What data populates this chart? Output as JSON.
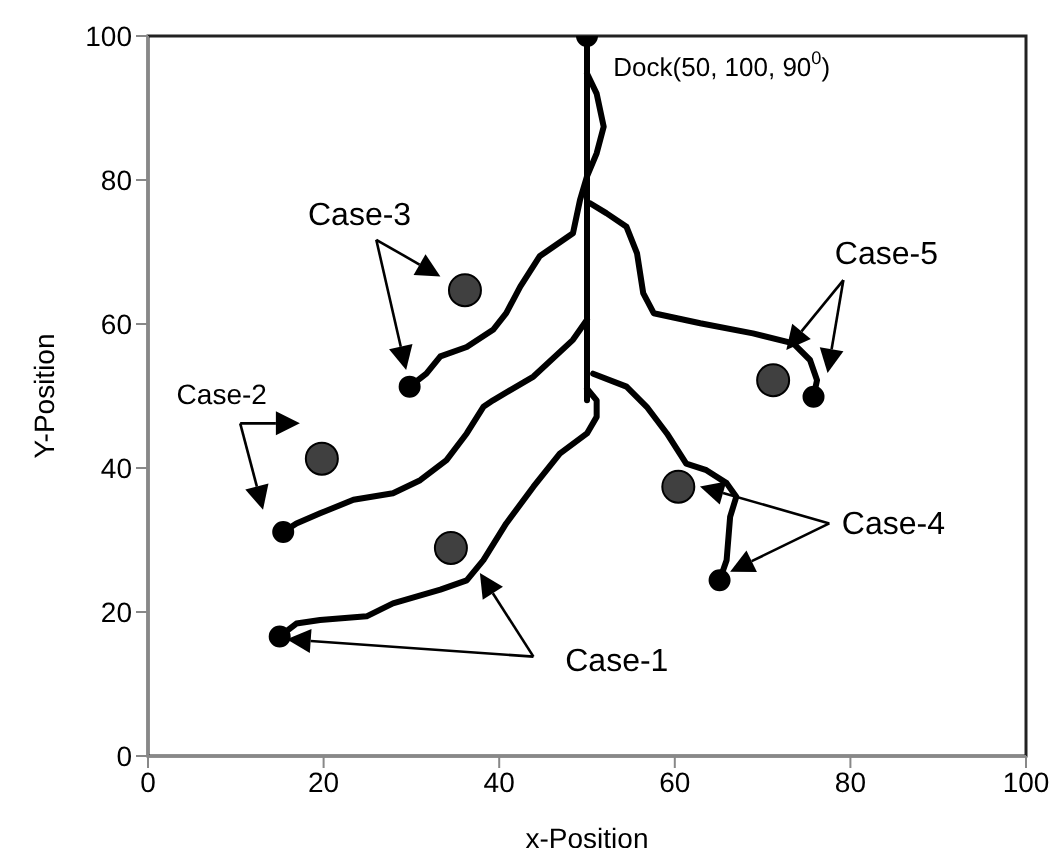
{
  "chart_data": {
    "type": "line",
    "xlabel": "x-Position",
    "ylabel": "Y-Position",
    "xlim": [
      0,
      100
    ],
    "ylim": [
      0,
      100
    ],
    "xticks": [
      0,
      20,
      40,
      60,
      80,
      100
    ],
    "yticks": [
      0,
      20,
      40,
      60,
      80,
      100
    ],
    "annotations": [
      "Dock(50, 100, 90$^{0}$)",
      "Case-1",
      "Case-2",
      "Case-3",
      {
        "text": "Case-4",
        "x": 67.0,
        "y": 36.0
      },
      "Case-5"
    ],
    "series": [
      {
        "color": "#000000",
        "x": [
          50,
          50
        ],
        "values": [
          100,
          49.4
        ]
      },
      {
        "color": "#000000",
        "x": [
          15.0,
          16.9,
          19.6,
          24.9,
          27.9,
          33.3,
          36.3,
          38.2,
          40.8,
          43.9,
          46.9,
          50.0,
          51.1,
          51.1,
          50
        ],
        "values": [
          16.6,
          18.4,
          18.9,
          19.4,
          21.2,
          23.1,
          24.4,
          27.2,
          32.3,
          37.4,
          42.0,
          44.8,
          47.1,
          49.4,
          51
        ]
      },
      {
        "color": "#000000",
        "x": [
          15.4,
          16.9,
          19.6,
          23.4,
          27.9,
          31.0,
          34.0,
          36.3,
          38.2,
          39.3,
          43.9,
          48.4,
          50
        ],
        "values": [
          31.1,
          32.3,
          33.7,
          35.6,
          36.5,
          38.3,
          41.1,
          44.8,
          48.5,
          49.4,
          52.7,
          57.8,
          60.6
        ]
      },
      {
        "color": "#000000",
        "x": [
          29.8,
          31.7,
          33.3,
          36.3,
          39.3,
          40.8,
          42.4,
          44.6,
          48.4,
          49.2,
          50,
          51.1,
          51.9,
          51.1,
          50
        ],
        "values": [
          51.3,
          53.1,
          55.5,
          56.8,
          59.2,
          61.5,
          65.2,
          69.4,
          72.6,
          77.2,
          80.5,
          83.7,
          87.4,
          92,
          94.8
        ]
      },
      {
        "color": "#000000",
        "x": [
          65.1,
          65.9,
          66.3,
          67.0,
          65.9,
          63.6,
          61.3,
          59.1,
          56.8,
          54.5,
          50.7
        ],
        "values": [
          24.4,
          27.2,
          33.2,
          36.0,
          37.9,
          39.7,
          40.6,
          44.8,
          48.5,
          51.3,
          53.1
        ]
      },
      {
        "color": "#000000",
        "x": [
          75.8,
          76.2,
          75.4,
          73.5,
          68.9,
          62.9,
          57.6,
          56.4,
          55.7,
          54.5,
          52.2,
          50.3
        ],
        "values": [
          49.9,
          52.2,
          55,
          57.3,
          58.7,
          60.1,
          61.5,
          64.3,
          69.8,
          73.5,
          75.4,
          76.8
        ]
      },
      {
        "type": "scatter",
        "color": "#000000",
        "marker": "circle",
        "x": [
          50,
          15.0,
          15.4,
          29.8,
          65.1,
          75.8
        ],
        "values": [
          100,
          16.6,
          31.1,
          51.3,
          24.4,
          49.9
        ]
      },
      {
        "type": "scatter",
        "color": "#404040",
        "marker": "circle",
        "x": [
          34.5,
          19.8,
          36.1,
          60.4,
          71.2
        ],
        "values": [
          28.9,
          41.3,
          64.7,
          37.4,
          52.2
        ]
      }
    ]
  }
}
